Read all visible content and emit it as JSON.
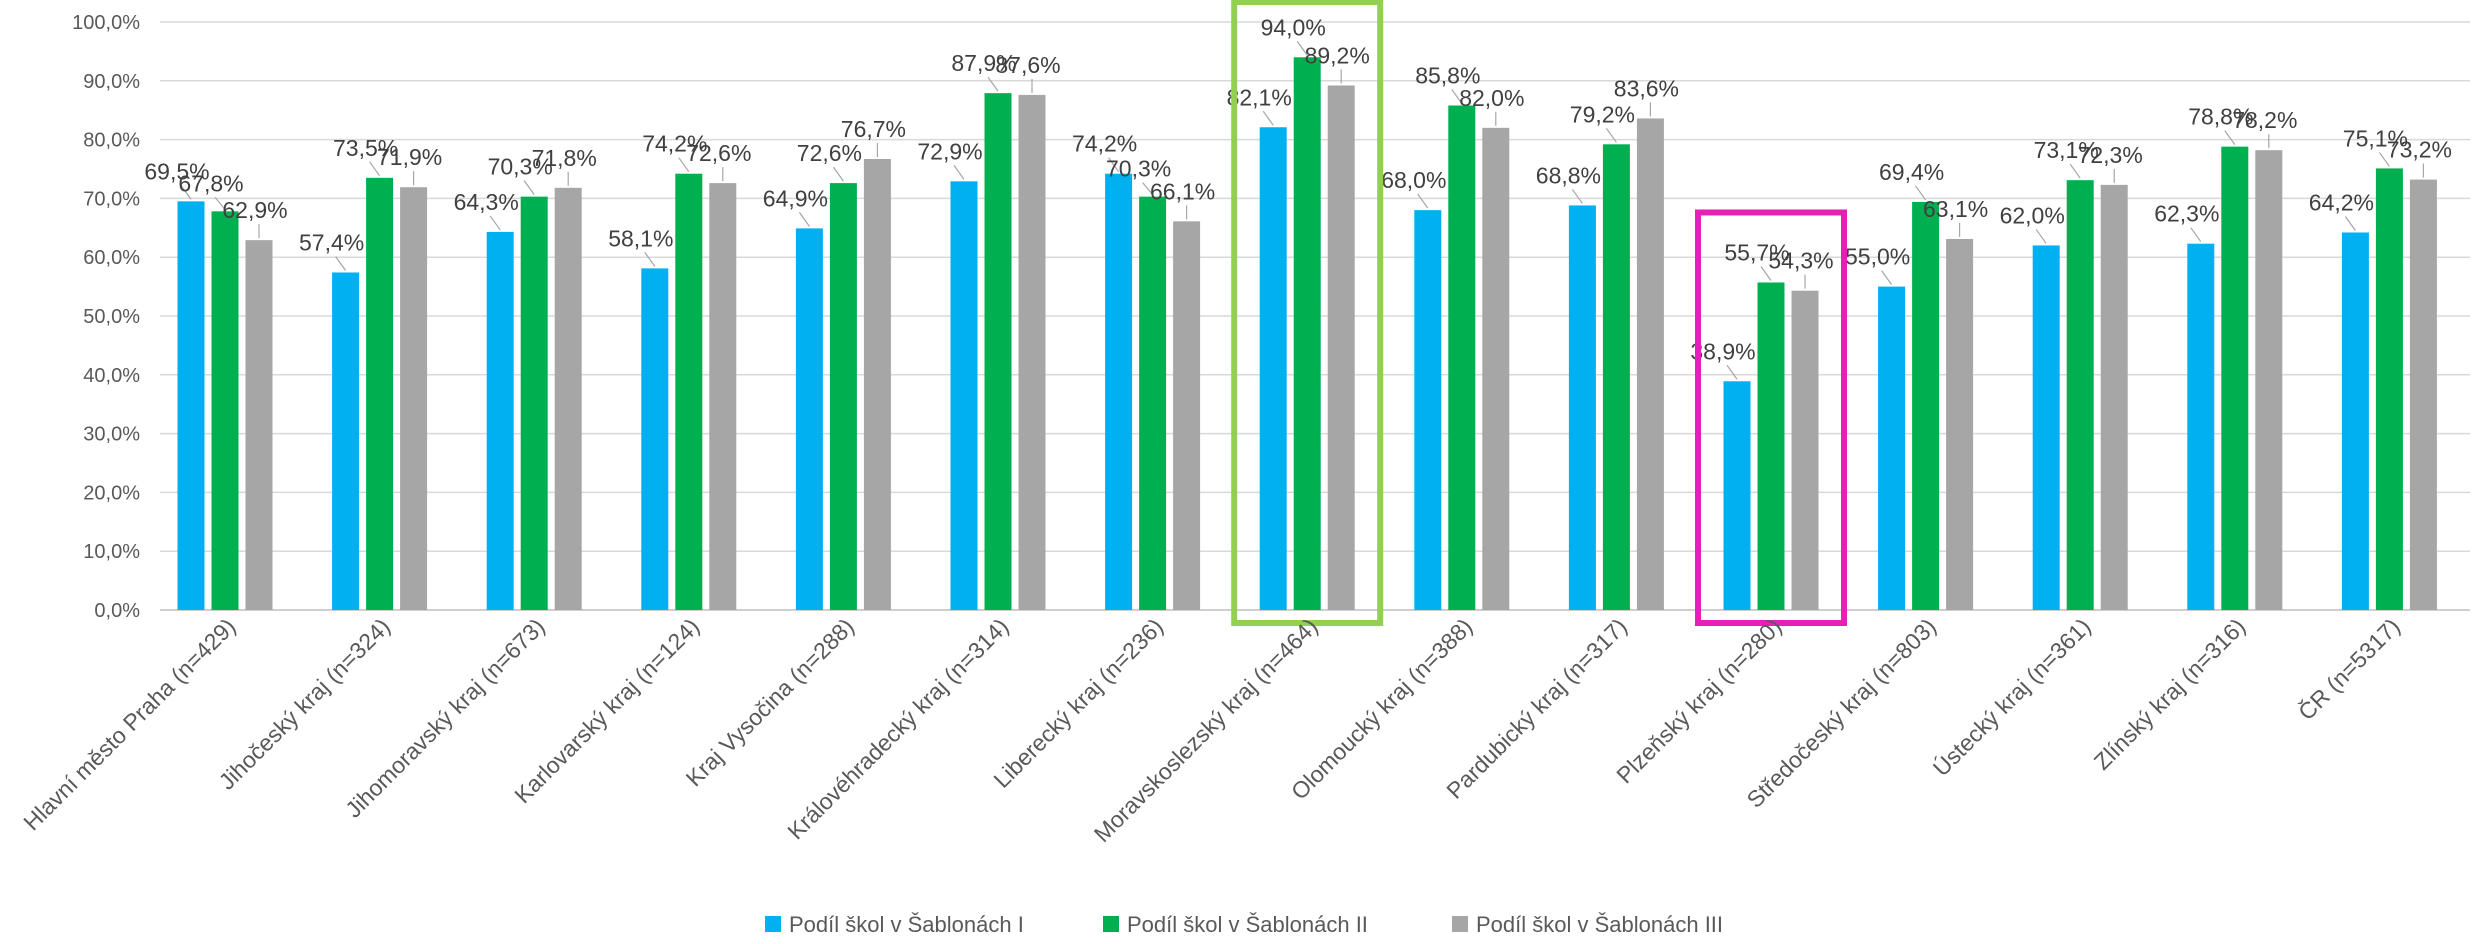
{
  "chart_data": {
    "type": "bar",
    "categories": [
      "Hlavní město Praha (n=429)",
      "Jihočeský kraj (n=324)",
      "Jihomoravský kraj (n=673)",
      "Karlovarský kraj (n=124)",
      "Kraj Vysočina (n=288)",
      "Královéhradecký kraj (n=314)",
      "Liberecký kraj (n=236)",
      "Moravskoslezský kraj (n=464)",
      "Olomoucký kraj (n=388)",
      "Pardubický kraj (n=317)",
      "Plzeňský kraj (n=280)",
      "Středočeský kraj (n=803)",
      "Ústecký kraj (n=361)",
      "Zlínský kraj (n=316)",
      "ČR (n=5317)"
    ],
    "series": [
      {
        "name": "Podíl škol v Šablonách I",
        "color": "#00b0f0",
        "values": [
          69.5,
          57.4,
          64.3,
          58.1,
          64.9,
          72.9,
          74.2,
          82.1,
          68.0,
          68.8,
          38.9,
          55.0,
          62.0,
          62.3,
          64.2
        ],
        "labels": [
          "69,5%",
          "57,4%",
          "64,3%",
          "58,1%",
          "64,9%",
          "72,9%",
          "74,2%",
          "82,1%",
          "68,0%",
          "68,8%",
          "38,9%",
          "55,0%",
          "62,0%",
          "62,3%",
          "64,2%"
        ]
      },
      {
        "name": "Podíl škol v Šablonách II",
        "color": "#00b050",
        "values": [
          67.8,
          73.5,
          70.3,
          74.2,
          72.6,
          87.9,
          70.3,
          94.0,
          85.8,
          79.2,
          55.7,
          69.4,
          73.1,
          78.8,
          75.1
        ],
        "labels": [
          "67,8%",
          "73,5%",
          "70,3%",
          "74,2%",
          "72,6%",
          "87,9%",
          "70,3%",
          "94,0%",
          "85,8%",
          "79,2%",
          "55,7%",
          "69,4%",
          "73,1%",
          "78,8%",
          "75,1%"
        ]
      },
      {
        "name": "Podíl škol v Šablonách III",
        "color": "#a6a6a6",
        "values": [
          62.9,
          71.9,
          71.8,
          72.6,
          76.7,
          87.6,
          66.1,
          89.2,
          82.0,
          83.6,
          54.3,
          63.1,
          72.3,
          78.2,
          73.2
        ],
        "labels": [
          "62,9%",
          "71,9%",
          "71,8%",
          "72,6%",
          "76,7%",
          "87,6%",
          "66,1%",
          "89,2%",
          "82,0%",
          "83,6%",
          "54,3%",
          "63,1%",
          "72,3%",
          "78,2%",
          "73,2%"
        ]
      }
    ],
    "y_ticks": [
      "0,0%",
      "10,0%",
      "20,0%",
      "30,0%",
      "40,0%",
      "50,0%",
      "60,0%",
      "70,0%",
      "80,0%",
      "90,0%",
      "100,0%"
    ],
    "ylim": [
      0,
      100
    ],
    "grid": true,
    "legend_position": "bottom",
    "highlights": [
      {
        "category": "Moravskoslezský kraj (n=464)",
        "color": "#92d050"
      },
      {
        "category": "Plzeňský kraj (n=280)",
        "color": "#e91eb4"
      }
    ]
  }
}
